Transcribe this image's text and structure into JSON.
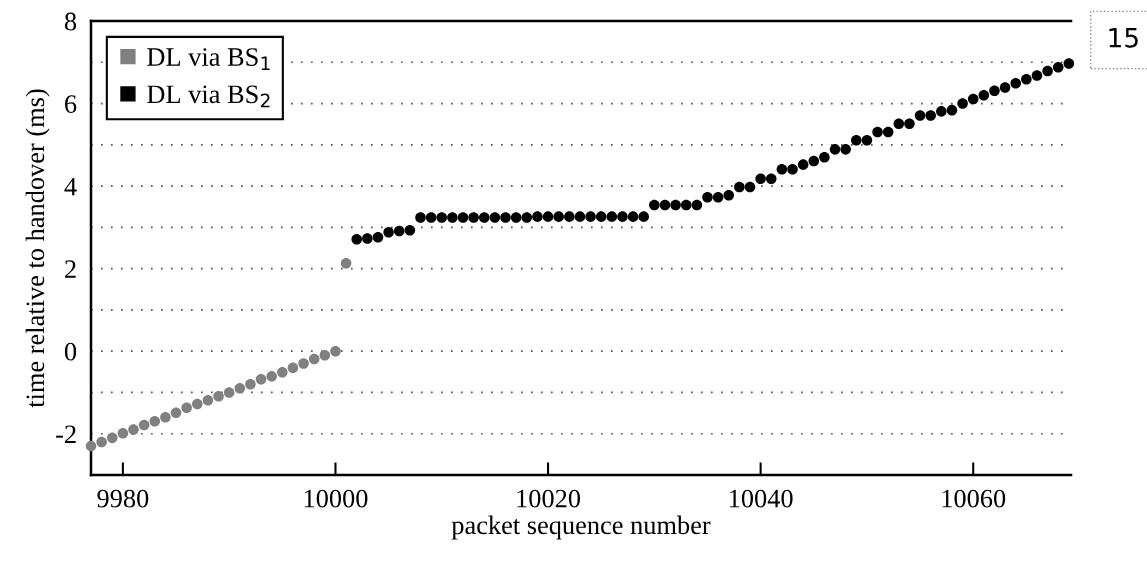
{
  "chart_data": {
    "type": "scatter",
    "xlabel": "packet sequence number",
    "ylabel": "time relative to handover (ms)",
    "xlim": [
      9977,
      10069.2
    ],
    "xticks": [
      9980,
      10000,
      10020,
      10040,
      10060
    ],
    "ylim": [
      -3,
      8
    ],
    "yticks": [
      -2,
      {
        "value": -1,
        "label": null
      },
      0,
      {
        "value": 1,
        "label": null
      },
      2,
      {
        "value": 3,
        "label": null
      },
      4,
      {
        "value": 5,
        "label": null
      },
      6,
      {
        "value": 7,
        "label": null
      },
      8
    ],
    "grid": "y",
    "legend": "top left",
    "marker": "circle",
    "annotations": [
      "15"
    ],
    "series": [
      {
        "name": "DL via BS$_{1}$",
        "color": "#808080",
        "x": [
          9977,
          9978,
          9979,
          9980,
          9981,
          9982,
          9983,
          9984,
          9985,
          9986,
          9987,
          9988,
          9989,
          9990,
          9991,
          9992,
          9993,
          9994,
          9995,
          9996,
          9997,
          9998,
          9999,
          10000,
          10001
        ],
        "values": [
          -2.3,
          -2.2,
          -2.1,
          -1.99,
          -1.9,
          -1.79,
          -1.7,
          -1.6,
          -1.49,
          -1.37,
          -1.28,
          -1.19,
          -1.09,
          -1.0,
          -0.9,
          -0.8,
          -0.68,
          -0.61,
          -0.51,
          -0.4,
          -0.3,
          -0.19,
          -0.1,
          0.0,
          2.13
        ]
      },
      {
        "name": "DL via BS$_{2}$",
        "color": "#000000",
        "x": [
          10002,
          10003,
          10004,
          10005,
          10006,
          10007,
          10008,
          10009,
          10010,
          10011,
          10012,
          10013,
          10014,
          10015,
          10016,
          10017,
          10018,
          10019,
          10020,
          10021,
          10022,
          10023,
          10024,
          10025,
          10026,
          10027,
          10028,
          10029,
          10030,
          10031,
          10032,
          10033,
          10034,
          10035,
          10036,
          10037,
          10038,
          10039,
          10040,
          10041,
          10042,
          10043,
          10044,
          10045,
          10046,
          10047,
          10048,
          10049,
          10050,
          10051,
          10052,
          10053,
          10054,
          10055,
          10056,
          10057,
          10058,
          10059,
          10060,
          10061,
          10062,
          10063,
          10064,
          10065,
          10066,
          10067,
          10068,
          10069
        ],
        "values": [
          2.71,
          2.73,
          2.76,
          2.88,
          2.91,
          2.93,
          3.24,
          3.24,
          3.24,
          3.24,
          3.24,
          3.24,
          3.24,
          3.24,
          3.24,
          3.24,
          3.24,
          3.26,
          3.26,
          3.26,
          3.26,
          3.26,
          3.26,
          3.26,
          3.26,
          3.26,
          3.26,
          3.26,
          3.54,
          3.54,
          3.54,
          3.54,
          3.54,
          3.73,
          3.73,
          3.78,
          3.98,
          3.98,
          4.18,
          4.18,
          4.41,
          4.41,
          4.52,
          4.61,
          4.7,
          4.89,
          4.89,
          5.11,
          5.11,
          5.31,
          5.31,
          5.51,
          5.51,
          5.71,
          5.71,
          5.81,
          5.84,
          6.0,
          6.11,
          6.2,
          6.31,
          6.39,
          6.49,
          6.59,
          6.68,
          6.79,
          6.88,
          6.97
        ]
      }
    ]
  }
}
